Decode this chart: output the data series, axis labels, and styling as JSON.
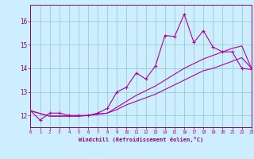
{
  "xlabel": "Windchill (Refroidissement éolien,°C)",
  "background_color": "#cceeff",
  "grid_color": "#99cccc",
  "line_color": "#aa00aa",
  "x_hours": [
    0,
    1,
    2,
    3,
    4,
    5,
    6,
    7,
    8,
    9,
    10,
    11,
    12,
    13,
    14,
    15,
    16,
    17,
    18,
    19,
    20,
    21,
    22,
    23
  ],
  "y_main": [
    12.2,
    11.8,
    12.1,
    12.1,
    12.0,
    12.0,
    12.0,
    12.1,
    12.3,
    13.0,
    13.2,
    13.8,
    13.55,
    14.1,
    15.4,
    15.35,
    16.3,
    15.1,
    15.6,
    14.9,
    14.7,
    14.7,
    14.0,
    13.95
  ],
  "y_linear_low": [
    12.2,
    12.08,
    11.97,
    11.97,
    11.97,
    11.97,
    12.0,
    12.05,
    12.1,
    12.25,
    12.45,
    12.6,
    12.75,
    12.9,
    13.1,
    13.3,
    13.5,
    13.7,
    13.9,
    14.0,
    14.15,
    14.3,
    14.45,
    14.0
  ],
  "y_linear_high": [
    12.2,
    12.08,
    11.97,
    11.97,
    11.97,
    11.97,
    12.0,
    12.05,
    12.1,
    12.35,
    12.6,
    12.85,
    13.05,
    13.25,
    13.5,
    13.75,
    14.0,
    14.2,
    14.4,
    14.55,
    14.7,
    14.85,
    14.95,
    14.0
  ],
  "ylim": [
    11.5,
    16.7
  ],
  "yticks": [
    12,
    13,
    14,
    15,
    16
  ],
  "xlim": [
    0,
    23
  ],
  "xticks": [
    0,
    1,
    2,
    3,
    4,
    5,
    6,
    7,
    8,
    9,
    10,
    11,
    12,
    13,
    14,
    15,
    16,
    17,
    18,
    19,
    20,
    21,
    22,
    23
  ]
}
